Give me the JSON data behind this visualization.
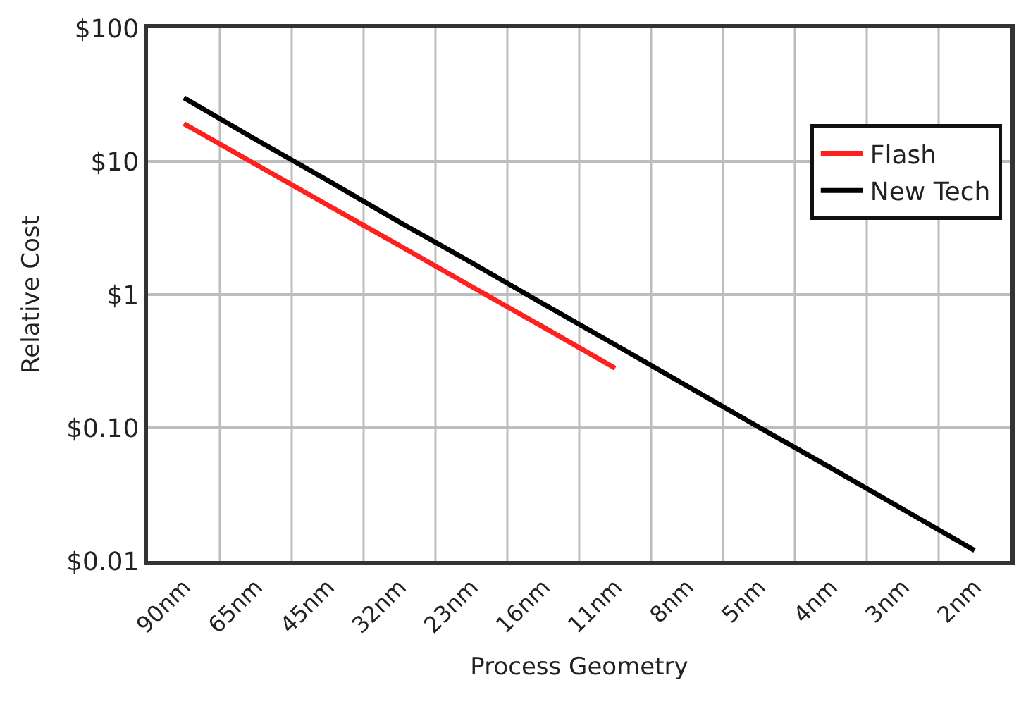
{
  "chart_data": {
    "type": "line",
    "xlabel": "Process Geometry",
    "ylabel": "Relative Cost",
    "categories": [
      "90nm",
      "65nm",
      "45nm",
      "32nm",
      "23nm",
      "16nm",
      "11nm",
      "8nm",
      "5nm",
      "4nm",
      "3nm",
      "2nm"
    ],
    "series": [
      {
        "name": "Flash",
        "color": "#ff2020",
        "values": [
          19.2,
          9.5,
          4.7,
          2.33,
          1.15,
          0.57,
          0.28,
          null,
          null,
          null,
          null,
          null
        ]
      },
      {
        "name": "New Tech",
        "color": "#000000",
        "values": [
          30,
          14.6,
          7.2,
          3.5,
          1.74,
          0.85,
          0.42,
          0.206,
          0.101,
          0.05,
          0.0245,
          0.012
        ]
      }
    ],
    "log": "y",
    "ylim": [
      0.01,
      100
    ],
    "yticks": [
      {
        "value": 0.01,
        "label": "$0.01"
      },
      {
        "value": 0.1,
        "label": "$0.10"
      },
      {
        "value": 1,
        "label": "$1"
      },
      {
        "value": 10,
        "label": "$10"
      },
      {
        "value": 100,
        "label": "$100"
      }
    ],
    "grid": true,
    "legend": "top right",
    "marker": "none",
    "line_style": "solid"
  }
}
